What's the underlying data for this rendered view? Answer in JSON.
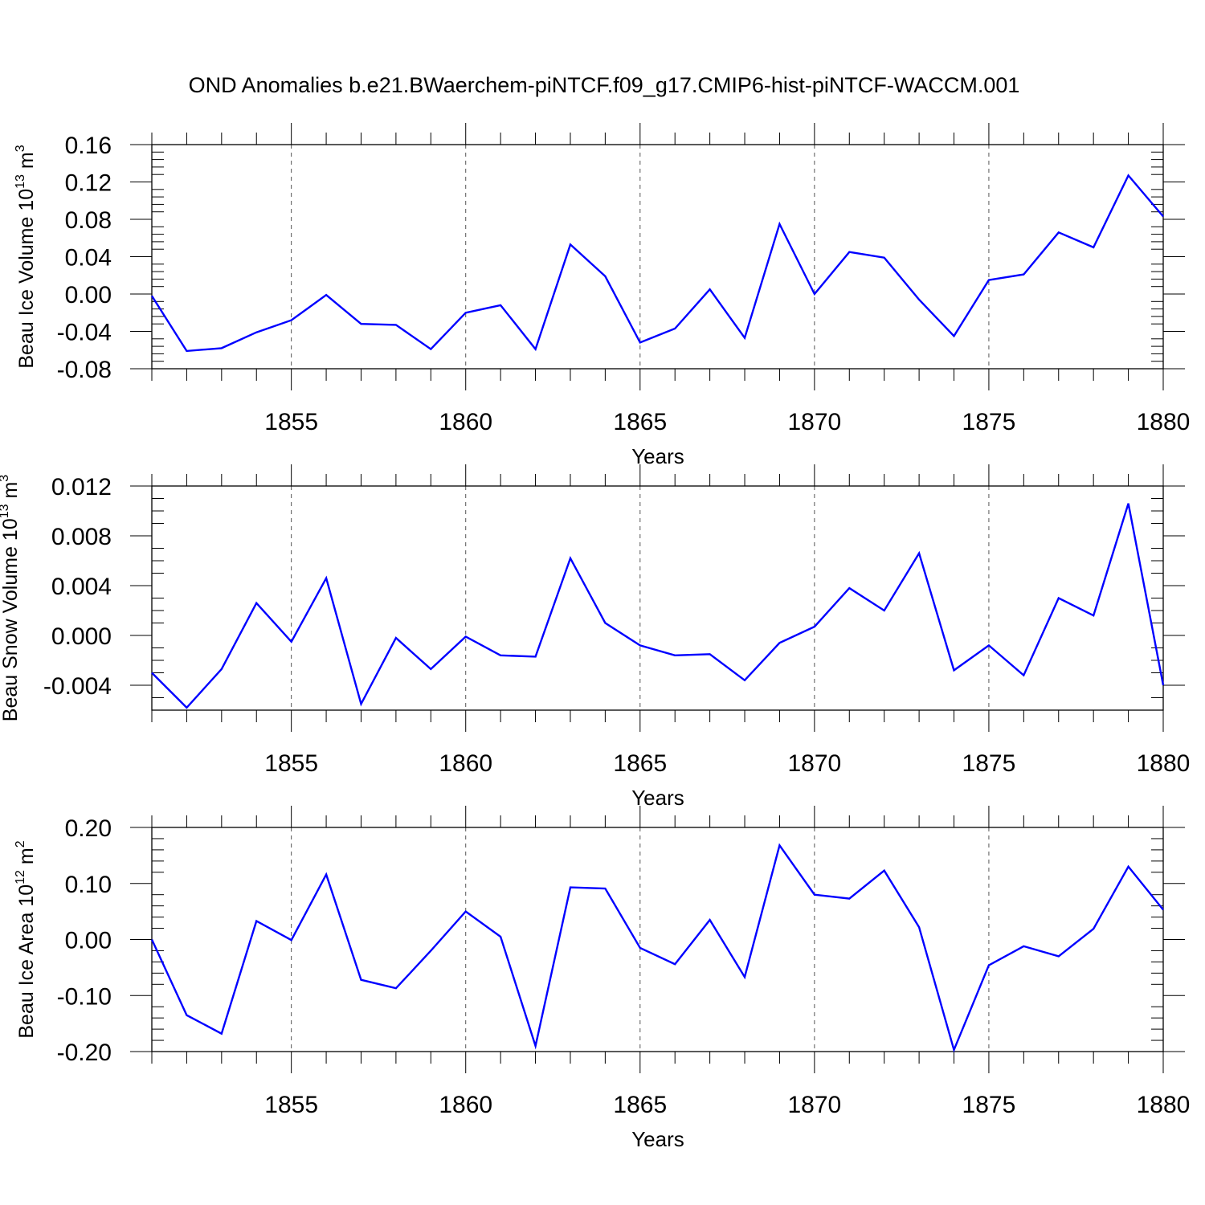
{
  "figure_title": "OND Anomalies b.e21.BWaerchem-piNTCF.f09_g17.CMIP6-hist-piNTCF-WACCM.001",
  "colors": {
    "line": "#0000ff",
    "axis": "#000000",
    "grid": "#555555"
  },
  "chart_data": [
    {
      "type": "line",
      "name": "Beau Ice Volume",
      "ylabel": "Beau Ice Volume 10",
      "ylabel_exp": "13",
      "ylabel_unit": " m",
      "ylabel_unit_exp": "3",
      "xlabel": "Years",
      "xlim": [
        1851,
        1880
      ],
      "ylim": [
        -0.08,
        0.16
      ],
      "yticks": [
        -0.08,
        -0.04,
        0.0,
        0.04,
        0.08,
        0.12,
        0.16
      ],
      "yticklabels": [
        "-0.08",
        "-0.04",
        "0.00",
        "0.04",
        "0.08",
        "0.12",
        "0.16"
      ],
      "yminor_step": 0.008,
      "xticks": [
        1855,
        1860,
        1865,
        1870,
        1875,
        1880
      ],
      "xticklabels": [
        "1855",
        "1860",
        "1865",
        "1870",
        "1875",
        "1880"
      ],
      "x": [
        1851,
        1852,
        1853,
        1854,
        1855,
        1856,
        1857,
        1858,
        1859,
        1860,
        1861,
        1862,
        1863,
        1864,
        1865,
        1866,
        1867,
        1868,
        1869,
        1870,
        1871,
        1872,
        1873,
        1874,
        1875,
        1876,
        1877,
        1878,
        1879,
        1880
      ],
      "values": [
        -0.002,
        -0.061,
        -0.058,
        -0.041,
        -0.028,
        -0.001,
        -0.032,
        -0.033,
        -0.059,
        -0.02,
        -0.012,
        -0.059,
        0.053,
        0.019,
        -0.052,
        -0.037,
        0.005,
        -0.047,
        0.075,
        0.0,
        0.045,
        0.039,
        -0.006,
        -0.045,
        0.015,
        0.021,
        0.066,
        0.05,
        0.127,
        0.083
      ]
    },
    {
      "type": "line",
      "name": "Beau Snow Volume",
      "ylabel": "Beau Snow Volume 10",
      "ylabel_exp": "13",
      "ylabel_unit": " m",
      "ylabel_unit_exp": "3",
      "xlabel": "Years",
      "xlim": [
        1851,
        1880
      ],
      "ylim": [
        -0.006,
        0.012
      ],
      "yticks": [
        -0.004,
        0.0,
        0.004,
        0.008,
        0.012
      ],
      "yticklabels": [
        "-0.004",
        "0.000",
        "0.004",
        "0.008",
        "0.012"
      ],
      "yminor_step": 0.001,
      "xticks": [
        1855,
        1860,
        1865,
        1870,
        1875,
        1880
      ],
      "xticklabels": [
        "1855",
        "1860",
        "1865",
        "1870",
        "1875",
        "1880"
      ],
      "x": [
        1851,
        1852,
        1853,
        1854,
        1855,
        1856,
        1857,
        1858,
        1859,
        1860,
        1861,
        1862,
        1863,
        1864,
        1865,
        1866,
        1867,
        1868,
        1869,
        1870,
        1871,
        1872,
        1873,
        1874,
        1875,
        1876,
        1877,
        1878,
        1879,
        1880
      ],
      "values": [
        -0.003,
        -0.0058,
        -0.0027,
        0.0026,
        -0.0005,
        0.0046,
        -0.0055,
        -0.0002,
        -0.0027,
        -0.0001,
        -0.0016,
        -0.0017,
        0.0062,
        0.001,
        -0.0008,
        -0.0016,
        -0.0015,
        -0.0036,
        -0.0006,
        0.0007,
        0.0038,
        0.002,
        0.0066,
        -0.0028,
        -0.0008,
        -0.0032,
        0.003,
        0.0016,
        0.0106,
        -0.004
      ]
    },
    {
      "type": "line",
      "name": "Beau Ice Area",
      "ylabel": "Beau Ice Area 10",
      "ylabel_exp": "12",
      "ylabel_unit": " m",
      "ylabel_unit_exp": "2",
      "xlabel": "Years",
      "xlim": [
        1851,
        1880
      ],
      "ylim": [
        -0.2,
        0.2
      ],
      "yticks": [
        -0.2,
        -0.1,
        0.0,
        0.1,
        0.2
      ],
      "yticklabels": [
        "-0.20",
        "-0.10",
        "0.00",
        "0.10",
        "0.20"
      ],
      "yminor_step": 0.02,
      "xticks": [
        1855,
        1860,
        1865,
        1870,
        1875,
        1880
      ],
      "xticklabels": [
        "1855",
        "1860",
        "1865",
        "1870",
        "1875",
        "1880"
      ],
      "x": [
        1851,
        1852,
        1853,
        1854,
        1855,
        1856,
        1857,
        1858,
        1859,
        1860,
        1861,
        1862,
        1863,
        1864,
        1865,
        1866,
        1867,
        1868,
        1869,
        1870,
        1871,
        1872,
        1873,
        1874,
        1875,
        1876,
        1877,
        1878,
        1879,
        1880
      ],
      "values": [
        0.0,
        -0.135,
        -0.168,
        0.033,
        -0.001,
        0.116,
        -0.072,
        -0.087,
        -0.02,
        0.05,
        0.005,
        -0.19,
        0.093,
        0.091,
        -0.015,
        -0.044,
        0.035,
        -0.067,
        0.168,
        0.08,
        0.073,
        0.123,
        0.022,
        -0.197,
        -0.046,
        -0.012,
        -0.03,
        0.019,
        0.13,
        0.053
      ]
    }
  ]
}
